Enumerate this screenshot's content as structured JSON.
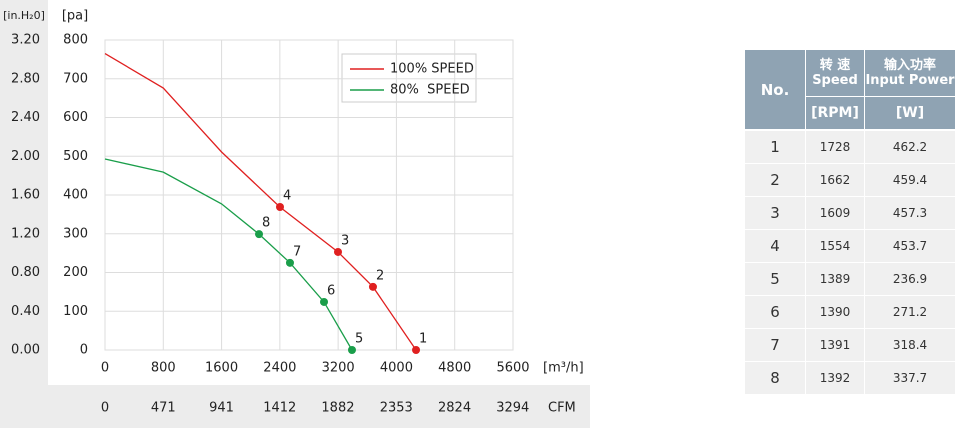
{
  "chart_data": {
    "type": "line",
    "y2_axis_label": "[in.H₂0]",
    "y_axis_label": "[pa]",
    "x_axis_label": "[m³/h]",
    "x2_axis_label": "CFM",
    "xlim": [
      0,
      5600
    ],
    "xticks": [
      0,
      800,
      1600,
      2400,
      3200,
      4000,
      4800,
      5600
    ],
    "x2lim": [
      0,
      3296
    ],
    "x2ticks": [
      0,
      471,
      941,
      1412,
      1882,
      2353,
      2824,
      3294
    ],
    "ylim": [
      0,
      800
    ],
    "yticks": [
      0,
      100,
      200,
      300,
      400,
      500,
      600,
      700,
      800
    ],
    "y2lim": [
      0,
      3.2
    ],
    "y2ticks": [
      {
        "value": 0,
        "label": "0.00"
      },
      {
        "value": 0.4,
        "label": "0.40"
      },
      {
        "value": 0.8,
        "label": "0.80"
      },
      {
        "value": 1.2,
        "label": "1.20"
      },
      {
        "value": 1.6,
        "label": "1.60"
      },
      {
        "value": 2,
        "label": "2.00"
      },
      {
        "value": 2.4,
        "label": "2.40"
      },
      {
        "value": 2.8,
        "label": "2.80"
      },
      {
        "value": 3.2,
        "label": "3.20"
      }
    ],
    "grid": true,
    "legend": "top-right",
    "series": [
      {
        "name": "100% SPEED",
        "color": "#e02020",
        "x": [
          0,
          800,
          1600,
          2400,
          3198,
          3678,
          4269
        ],
        "values": [
          765,
          676,
          511,
          369,
          253,
          163,
          0
        ],
        "points": {
          "x": [
            4269,
            3678,
            3198,
            2402
          ],
          "values": [
            0,
            163,
            253,
            369
          ],
          "labels": [
            1,
            2,
            3,
            4
          ]
        }
      },
      {
        "name": "80%  SPEED",
        "color": "#1a9e4a",
        "x": [
          0,
          800,
          1600,
          2114,
          2539,
          3006,
          3390
        ],
        "values": [
          493,
          459,
          377,
          299,
          225,
          124,
          0
        ],
        "points": {
          "x": [
            3390,
            3006,
            2539,
            2114
          ],
          "values": [
            0,
            124,
            225,
            299
          ],
          "labels": [
            5,
            6,
            7,
            8
          ]
        }
      }
    ]
  },
  "table": {
    "no_header": "No.",
    "columns": [
      {
        "cn": "转 速",
        "en": "Speed",
        "unit": "[RPM]"
      },
      {
        "cn": "输入功率",
        "en": "Input Power",
        "unit": "[W]"
      }
    ],
    "rows": [
      [
        1,
        1728,
        462.2
      ],
      [
        2,
        1662,
        459.4
      ],
      [
        3,
        1609,
        457.3
      ],
      [
        4,
        1554,
        453.7
      ],
      [
        5,
        1389,
        236.9
      ],
      [
        6,
        1390,
        271.2
      ],
      [
        7,
        1391,
        318.4
      ],
      [
        8,
        1392,
        337.7
      ]
    ]
  }
}
